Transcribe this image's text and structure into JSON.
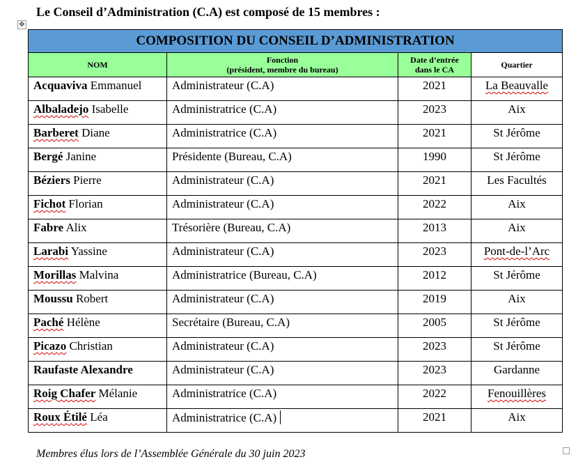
{
  "heading": "Le Conseil d’Administration (C.A) est composé de 15 membres :",
  "table": {
    "title": "COMPOSITION DU CONSEIL D’ADMINISTRATION",
    "columns": {
      "nom": "NOM",
      "fonction_line1": "Fonction",
      "fonction_line2": "(président, membre du bureau)",
      "date_line1": "Date d’entrée",
      "date_line2": "dans le CA",
      "quartier": "Quartier"
    },
    "rows": [
      {
        "last": "Acquaviva",
        "first": "Emmanuel",
        "fonction": "Administrateur (C.A)",
        "date": "2021",
        "quartier": "La Beauvalle"
      },
      {
        "last": "Albaladejo",
        "first": "Isabelle",
        "fonction": "Administratrice (C.A)",
        "date": "2023",
        "quartier": "Aix"
      },
      {
        "last": "Barberet",
        "first": "Diane",
        "fonction": "Administratrice (C.A)",
        "date": "2021",
        "quartier": "St Jérôme"
      },
      {
        "last": "Bergé",
        "first": "Janine",
        "fonction": "Présidente (Bureau, C.A)",
        "date": "1990",
        "quartier": "St Jérôme"
      },
      {
        "last": "Béziers",
        "first": "Pierre",
        "fonction": "Administrateur (C.A)",
        "date": "2021",
        "quartier": "Les Facultés"
      },
      {
        "last": "Fichot",
        "first": "Florian",
        "fonction": "Administrateur (C.A)",
        "date": "2022",
        "quartier": "Aix"
      },
      {
        "last": "Fabre",
        "first": "Alix",
        "fonction": "Trésorière (Bureau, C.A)",
        "date": "2013",
        "quartier": "Aix"
      },
      {
        "last": "Larabi",
        "first": "Yassine",
        "fonction": "Administrateur (C.A)",
        "date": "2023",
        "quartier": "Pont-de-l’Arc"
      },
      {
        "last": "Morillas",
        "first": "Malvina",
        "fonction": "Administratrice (Bureau, C.A)",
        "date": "2012",
        "quartier": "St Jérôme"
      },
      {
        "last": "Moussu",
        "first": "Robert",
        "fonction": "Administrateur (C.A)",
        "date": "2019",
        "quartier": "Aix"
      },
      {
        "last": "Paché",
        "first": "Hélène",
        "fonction": "Secrétaire (Bureau, C.A)",
        "date": "2005",
        "quartier": "St Jérôme"
      },
      {
        "last": "Picazo",
        "first": "Christian",
        "fonction": "Administrateur (C.A)",
        "date": "2023",
        "quartier": "St Jérôme"
      },
      {
        "last": "Raufaste Alexandre",
        "first": "",
        "fonction": "Administrateur (C.A)",
        "date": "2023",
        "quartier": "Gardanne"
      },
      {
        "last": "Roig Chafer",
        "first": "Mélanie",
        "fonction": "Administratrice (C.A)",
        "date": "2022",
        "quartier": "Fenouillères"
      },
      {
        "last": "Roux Étilé",
        "first": "Léa",
        "fonction": "Administratrice (C.A)",
        "date": "2021",
        "quartier": "Aix"
      }
    ]
  },
  "footnote": "Membres élus lors de l’Assemblée Générale du 30 juin 2023"
}
